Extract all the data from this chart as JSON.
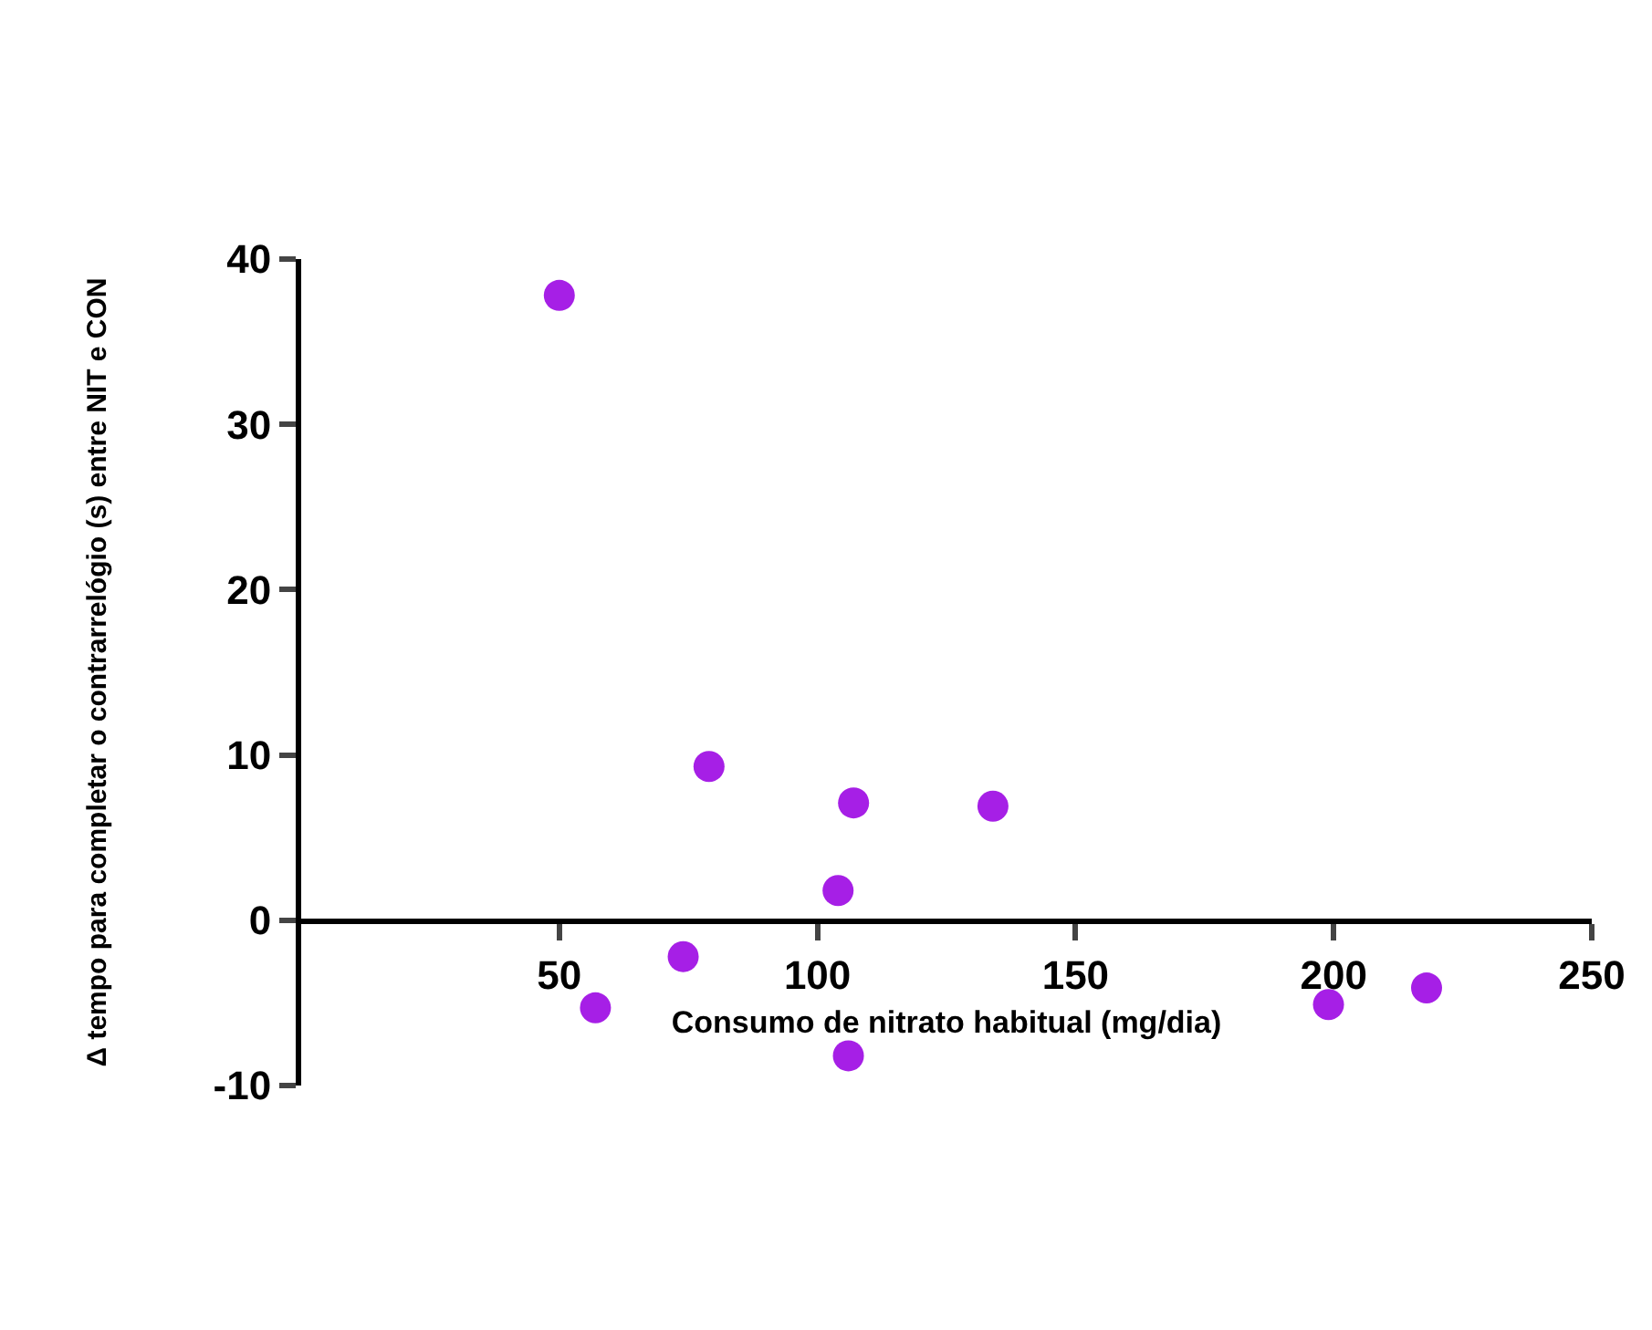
{
  "chart_data": {
    "type": "scatter",
    "xlabel": "Consumo de nitrato habitual (mg/dia)",
    "ylabel": "Δ tempo para completar o contrarrelógio (s) entre NIT e CON",
    "x": [
      50,
      57,
      74,
      79,
      104,
      107,
      106,
      134,
      199,
      218
    ],
    "values": [
      37.8,
      -5.3,
      -2.2,
      9.3,
      1.8,
      7.1,
      -8.2,
      6.9,
      -5.1,
      -4.1
    ],
    "color": "#a61fe6",
    "marker": "circle",
    "grid": false,
    "xlim": [
      0,
      250
    ],
    "xticks": [
      50,
      100,
      150,
      200,
      250
    ],
    "ylim": [
      -10,
      40
    ],
    "yticks": [
      -10,
      0,
      10,
      20,
      30,
      40
    ]
  }
}
